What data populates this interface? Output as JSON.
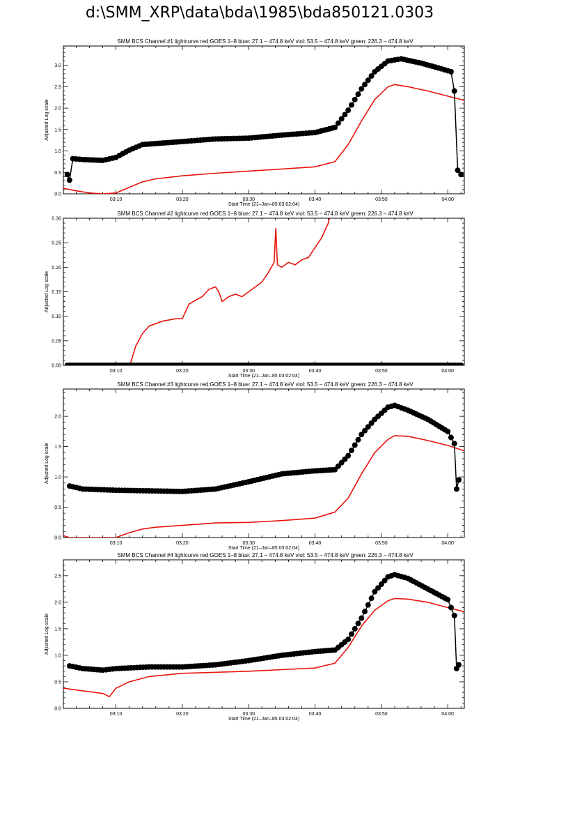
{
  "page_title": "d:\\SMM_XRP\\data\\bda\\1985\\bda850121.0303",
  "colors": {
    "goes": "#e8140c",
    "bcs": "#000000"
  },
  "chart_data": [
    {
      "type": "scatter",
      "title": "SMM BCS Channel #1 lightcurve  red:GOES 1–8  blue: 27.1 – 474.8 keV  viol: 53.5 – 474.8 keV  green: 226.3 – 474.8 keV",
      "xlabel": "Start Time (21–Jan–85 03:02:04)",
      "ylabel": "Adjusted Log scale",
      "xlim": [
        "03:02:04",
        "04:02:30"
      ],
      "ylim": [
        0.0,
        3.45
      ],
      "xticks": [
        "03:10",
        "03:20",
        "03:30",
        "03:40",
        "03:50",
        "04:00"
      ],
      "yticks": [
        "0.0",
        "0.5",
        "1.0",
        "1.5",
        "2.0",
        "2.5",
        "3.0"
      ],
      "series": [
        {
          "color": "#e8140c",
          "style": "line",
          "x": [
            "03:02:04",
            "03:04",
            "03:06",
            "03:08",
            "03:10",
            "03:12",
            "03:14",
            "03:16",
            "03:20",
            "03:25",
            "03:30",
            "03:35",
            "03:40",
            "03:43",
            "03:45",
            "03:47",
            "03:49",
            "03:51",
            "03:52",
            "03:54",
            "03:57",
            "04:00",
            "04:02:30"
          ],
          "y": [
            0.13,
            0.07,
            0.02,
            0.0,
            0.02,
            0.15,
            0.28,
            0.35,
            0.42,
            0.48,
            0.53,
            0.58,
            0.63,
            0.75,
            1.15,
            1.7,
            2.2,
            2.5,
            2.55,
            2.5,
            2.4,
            2.28,
            2.18
          ]
        },
        {
          "color": "#000000",
          "style": "points",
          "x": [
            "03:02:40",
            "03:03",
            "03:03:30",
            "03:05",
            "03:08",
            "03:10",
            "03:12",
            "03:14",
            "03:20",
            "03:25",
            "03:30",
            "03:35",
            "03:40",
            "03:43",
            "03:45",
            "03:47",
            "03:49",
            "03:51",
            "03:53",
            "03:56",
            "03:59",
            "04:00:30",
            "04:01",
            "04:01:30",
            "04:02"
          ],
          "y": [
            0.45,
            0.32,
            0.82,
            0.8,
            0.78,
            0.85,
            1.02,
            1.15,
            1.22,
            1.28,
            1.3,
            1.37,
            1.43,
            1.55,
            1.95,
            2.45,
            2.85,
            3.1,
            3.15,
            3.05,
            2.92,
            2.85,
            2.4,
            0.55,
            0.45
          ]
        }
      ]
    },
    {
      "type": "scatter",
      "title": "SMM BCS Channel #2 lightcurve  red:GOES 1–8  blue: 27.1 – 474.8 keV  viol: 53.5 – 474.8 keV  green: 226.3 – 474.8 keV",
      "xlabel": "Start Time (21–Jan–85 03:02:04)",
      "ylabel": "Adjusted Log scale",
      "xlim": [
        "03:02:04",
        "04:02:30"
      ],
      "ylim": [
        0.0,
        0.3
      ],
      "xticks": [
        "03:10",
        "03:20",
        "03:30",
        "03:40",
        "03:50",
        "04:00"
      ],
      "yticks": [
        "0.00",
        "0.05",
        "0.10",
        "0.15",
        "0.20",
        "0.25",
        "0.30"
      ],
      "series": [
        {
          "color": "#e8140c",
          "style": "line",
          "x": [
            "03:12:05",
            "03:13",
            "03:14",
            "03:15",
            "03:17",
            "03:19",
            "03:20",
            "03:21",
            "03:23",
            "03:24",
            "03:25",
            "03:25:30",
            "03:26",
            "03:27",
            "03:28",
            "03:29",
            "03:30",
            "03:31",
            "03:32",
            "03:33",
            "03:33:50",
            "03:34:05",
            "03:34:20",
            "03:35",
            "03:36",
            "03:37",
            "03:38",
            "03:39",
            "03:40",
            "03:41",
            "03:42",
            "03:42:10"
          ],
          "y": [
            0.0,
            0.04,
            0.065,
            0.08,
            0.09,
            0.095,
            0.095,
            0.125,
            0.14,
            0.155,
            0.16,
            0.15,
            0.13,
            0.14,
            0.145,
            0.14,
            0.15,
            0.16,
            0.17,
            0.19,
            0.21,
            0.28,
            0.205,
            0.2,
            0.21,
            0.205,
            0.215,
            0.22,
            0.24,
            0.26,
            0.29,
            0.3
          ]
        },
        {
          "color": "#000000",
          "style": "points",
          "x": [
            "03:02:40",
            "04:02"
          ],
          "y": [
            0.0,
            0.0
          ]
        }
      ]
    },
    {
      "type": "scatter",
      "title": "SMM BCS Channel #3 lightcurve  red:GOES 1–8  blue: 27.1 – 474.8 keV  viol: 53.5 – 474.8 keV  green: 226.3 – 474.8 keV",
      "xlabel": "Start Time (21–Jan–85 03:02:04)",
      "ylabel": "Adjusted Log scale",
      "xlim": [
        "03:02:04",
        "04:02:30"
      ],
      "ylim": [
        0.0,
        2.45
      ],
      "xticks": [
        "03:10",
        "03:20",
        "03:30",
        "03:40",
        "03:50",
        "04:00"
      ],
      "yticks": [
        "0.0",
        "0.5",
        "1.0",
        "1.5",
        "2.0"
      ],
      "series": [
        {
          "color": "#e8140c",
          "style": "line",
          "x": [
            "03:02:04",
            "03:03",
            "03:04",
            "03:10",
            "03:12",
            "03:14",
            "03:16",
            "03:20",
            "03:25",
            "03:30",
            "03:35",
            "03:40",
            "03:43",
            "03:45",
            "03:47",
            "03:49",
            "03:51",
            "03:52",
            "03:54",
            "03:57",
            "04:00",
            "04:02:30"
          ],
          "y": [
            0.03,
            0.0,
            0.0,
            0.0,
            0.08,
            0.14,
            0.17,
            0.2,
            0.24,
            0.25,
            0.28,
            0.32,
            0.42,
            0.65,
            1.05,
            1.4,
            1.62,
            1.68,
            1.67,
            1.6,
            1.52,
            1.43
          ]
        },
        {
          "color": "#000000",
          "style": "points",
          "x": [
            "03:03",
            "03:05",
            "03:10",
            "03:15",
            "03:20",
            "03:25",
            "03:30",
            "03:35",
            "03:40",
            "03:43",
            "03:45",
            "03:47",
            "03:49",
            "03:51",
            "03:52",
            "03:54",
            "03:57",
            "04:00",
            "04:01",
            "04:01:20",
            "04:01:40"
          ],
          "y": [
            0.85,
            0.8,
            0.78,
            0.77,
            0.76,
            0.8,
            0.92,
            1.05,
            1.1,
            1.12,
            1.35,
            1.7,
            1.95,
            2.15,
            2.18,
            2.1,
            1.95,
            1.75,
            1.55,
            0.8,
            0.95
          ]
        }
      ]
    },
    {
      "type": "scatter",
      "title": "SMM BCS Channel #4 lightcurve  red:GOES 1–8  blue: 27.1 – 474.8 keV  viol: 53.5 – 474.8 keV  green: 226.3 – 474.8 keV",
      "xlabel": "Start Time (21–Jan–85 03:02:04)",
      "ylabel": "Adjusted Log scale",
      "xlim": [
        "03:02:04",
        "04:02:30"
      ],
      "ylim": [
        0.0,
        2.8
      ],
      "xticks": [
        "03:10",
        "03:20",
        "03:30",
        "03:40",
        "03:50",
        "04:00"
      ],
      "yticks": [
        "0.0",
        "0.5",
        "1.0",
        "1.5",
        "2.0",
        "2.5"
      ],
      "series": [
        {
          "color": "#e8140c",
          "style": "line",
          "x": [
            "03:02:04",
            "03:05",
            "03:08",
            "03:09",
            "03:10",
            "03:12",
            "03:15",
            "03:20",
            "03:25",
            "03:30",
            "03:35",
            "03:40",
            "03:43",
            "03:45",
            "03:47",
            "03:49",
            "03:51",
            "03:52",
            "03:54",
            "03:57",
            "04:00",
            "04:02:30"
          ],
          "y": [
            0.38,
            0.33,
            0.28,
            0.22,
            0.38,
            0.5,
            0.6,
            0.66,
            0.68,
            0.7,
            0.73,
            0.76,
            0.85,
            1.15,
            1.55,
            1.85,
            2.03,
            2.07,
            2.06,
            2.0,
            1.9,
            1.82
          ]
        },
        {
          "color": "#000000",
          "style": "points",
          "x": [
            "03:03",
            "03:05",
            "03:08",
            "03:10",
            "03:15",
            "03:20",
            "03:25",
            "03:30",
            "03:35",
            "03:40",
            "03:43",
            "03:45",
            "03:47",
            "03:49",
            "03:51",
            "03:52",
            "03:54",
            "03:57",
            "04:00",
            "04:01",
            "04:01:20",
            "04:01:40"
          ],
          "y": [
            0.8,
            0.75,
            0.72,
            0.75,
            0.78,
            0.78,
            0.82,
            0.9,
            1.0,
            1.07,
            1.1,
            1.3,
            1.7,
            2.2,
            2.48,
            2.52,
            2.45,
            2.25,
            2.05,
            1.75,
            0.75,
            0.82
          ]
        }
      ]
    }
  ]
}
